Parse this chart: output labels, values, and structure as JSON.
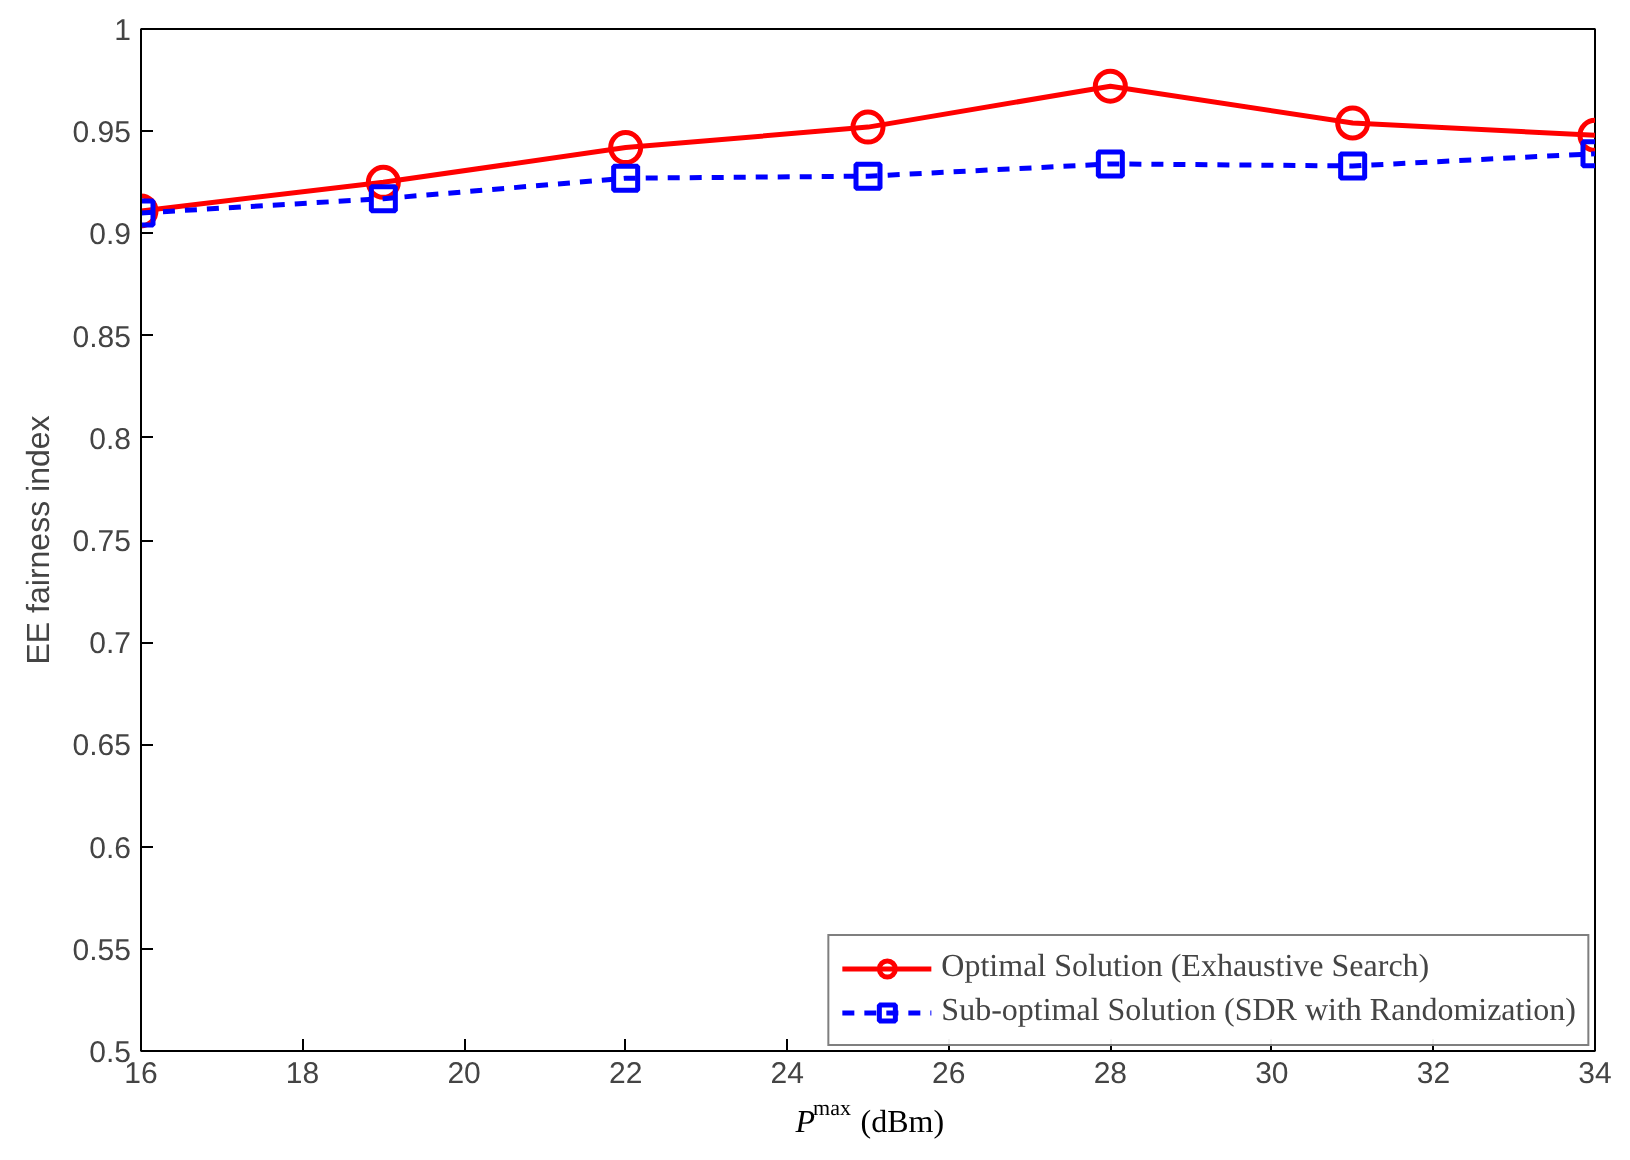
{
  "chart_data": {
    "type": "line",
    "xlabel": "P$^{max}$ (dBm)",
    "ylabel": "EE fairness index",
    "x": [
      16,
      19,
      22,
      25,
      28,
      31,
      34
    ],
    "series": [
      {
        "name": "Optimal Solution (Exhaustive Search)",
        "color": "#ff0000",
        "marker": "circle",
        "line_style": "solid",
        "values": [
          0.911,
          0.925,
          0.942,
          0.952,
          0.972,
          0.954,
          0.948
        ]
      },
      {
        "name": "Sub-optimal Solution (SDR with Randomization)",
        "color": "#0000ff",
        "marker": "square",
        "line_style": "dashed",
        "values": [
          0.91,
          0.917,
          0.927,
          0.928,
          0.934,
          0.933,
          0.939
        ]
      }
    ],
    "xlim": [
      16,
      34
    ],
    "ylim": [
      0.5,
      1
    ],
    "xticks": [
      16,
      18,
      20,
      22,
      24,
      26,
      28,
      30,
      32,
      34
    ],
    "yticks": [
      0.5,
      0.55,
      0.6,
      0.65,
      0.7,
      0.75,
      0.8,
      0.85,
      0.9,
      0.95,
      1
    ],
    "grid": false,
    "legend": "bottom right"
  }
}
